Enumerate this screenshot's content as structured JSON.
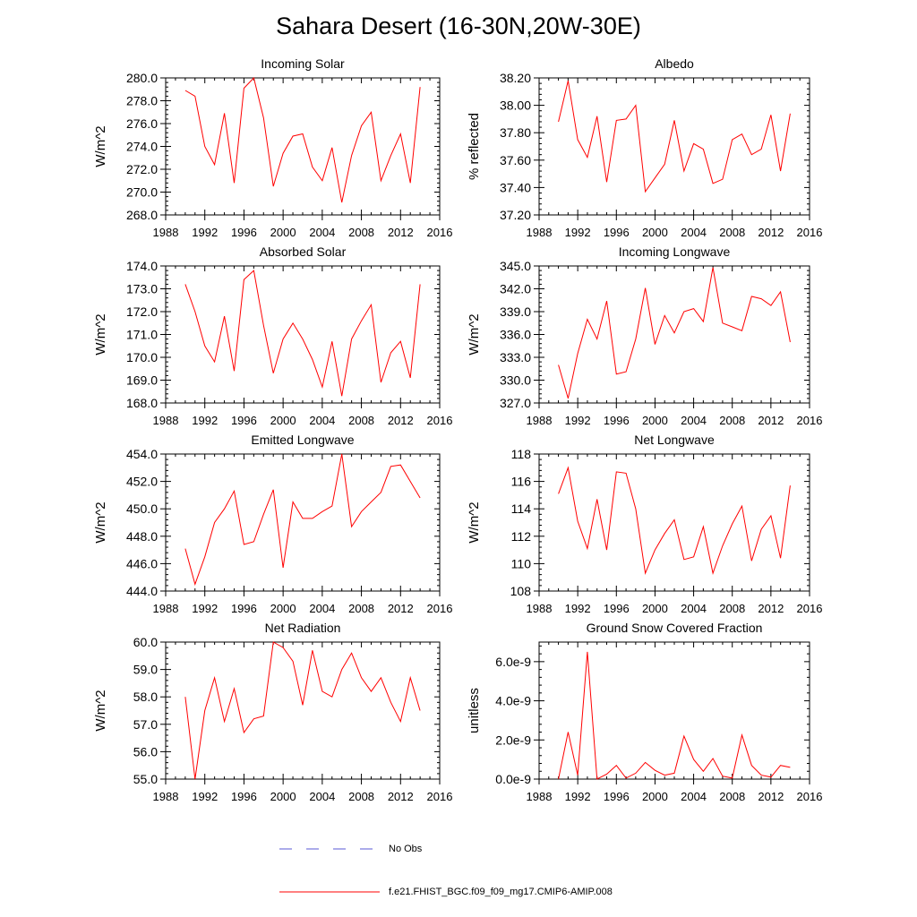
{
  "title": "Sahara Desert (16-30N,20W-30E)",
  "legend": {
    "items": [
      {
        "label": "No Obs",
        "color": "#5a5ad6",
        "style": "dashed"
      },
      {
        "label": "f.e21.FHIST_BGC.f09_f09_mg17.CMIP6-AMIP.008",
        "color": "#ff0000",
        "style": "solid"
      }
    ]
  },
  "chart_data": [
    {
      "type": "line",
      "title": "Incoming Solar",
      "xlabel": "",
      "ylabel": "W/m^2",
      "xlim": [
        1988,
        2016
      ],
      "ylim": [
        268,
        280
      ],
      "xticks": [
        1988,
        1992,
        1996,
        2000,
        2004,
        2008,
        2012,
        2016
      ],
      "yticks": [
        268.0,
        270.0,
        272.0,
        274.0,
        276.0,
        278.0,
        280.0
      ],
      "ytick_labels": [
        "268.0",
        "270.0",
        "272.0",
        "274.0",
        "276.0",
        "278.0",
        "280.0"
      ],
      "x": [
        1990,
        1991,
        1992,
        1993,
        1994,
        1995,
        1996,
        1997,
        1998,
        1999,
        2000,
        2001,
        2002,
        2003,
        2004,
        2005,
        2006,
        2007,
        2008,
        2009,
        2010,
        2011,
        2012,
        2013,
        2014
      ],
      "series": [
        {
          "name": "f.e21.FHIST_BGC.f09_f09_mg17.CMIP6-AMIP.008",
          "color": "#ff0000",
          "values": [
            278.9,
            278.4,
            274.0,
            272.4,
            276.9,
            270.8,
            279.1,
            280.0,
            276.5,
            270.5,
            273.4,
            274.9,
            275.1,
            272.2,
            271.0,
            273.9,
            269.1,
            273.2,
            275.8,
            277.0,
            271.0,
            273.2,
            275.1,
            270.8,
            279.2
          ]
        }
      ]
    },
    {
      "type": "line",
      "title": "Albedo",
      "xlabel": "",
      "ylabel": "% reflected",
      "xlim": [
        1988,
        2016
      ],
      "ylim": [
        37.2,
        38.2
      ],
      "xticks": [
        1988,
        1992,
        1996,
        2000,
        2004,
        2008,
        2012,
        2016
      ],
      "yticks": [
        37.2,
        37.4,
        37.6,
        37.8,
        38.0,
        38.2
      ],
      "ytick_labels": [
        "37.20",
        "37.40",
        "37.60",
        "37.80",
        "38.00",
        "38.20"
      ],
      "x": [
        1990,
        1991,
        1992,
        1993,
        1994,
        1995,
        1996,
        1997,
        1998,
        1999,
        2000,
        2001,
        2002,
        2003,
        2004,
        2005,
        2006,
        2007,
        2008,
        2009,
        2010,
        2011,
        2012,
        2013,
        2014
      ],
      "series": [
        {
          "name": "f.e21.FHIST_BGC.f09_f09_mg17.CMIP6-AMIP.008",
          "color": "#ff0000",
          "values": [
            37.88,
            38.18,
            37.75,
            37.62,
            37.92,
            37.44,
            37.89,
            37.9,
            38.0,
            37.37,
            37.47,
            37.57,
            37.89,
            37.52,
            37.72,
            37.68,
            37.43,
            37.46,
            37.75,
            37.79,
            37.64,
            37.68,
            37.93,
            37.52,
            37.94
          ]
        }
      ]
    },
    {
      "type": "line",
      "title": "Absorbed Solar",
      "xlabel": "",
      "ylabel": "W/m^2",
      "xlim": [
        1988,
        2016
      ],
      "ylim": [
        168,
        174
      ],
      "xticks": [
        1988,
        1992,
        1996,
        2000,
        2004,
        2008,
        2012,
        2016
      ],
      "yticks": [
        168.0,
        169.0,
        170.0,
        171.0,
        172.0,
        173.0,
        174.0
      ],
      "ytick_labels": [
        "168.0",
        "169.0",
        "170.0",
        "171.0",
        "172.0",
        "173.0",
        "174.0"
      ],
      "x": [
        1990,
        1991,
        1992,
        1993,
        1994,
        1995,
        1996,
        1997,
        1998,
        1999,
        2000,
        2001,
        2002,
        2003,
        2004,
        2005,
        2006,
        2007,
        2008,
        2009,
        2010,
        2011,
        2012,
        2013,
        2014
      ],
      "series": [
        {
          "name": "f.e21.FHIST_BGC.f09_f09_mg17.CMIP6-AMIP.008",
          "color": "#ff0000",
          "values": [
            173.2,
            172.0,
            170.5,
            169.8,
            171.8,
            169.4,
            173.4,
            173.8,
            171.4,
            169.3,
            170.8,
            171.5,
            170.8,
            169.9,
            168.7,
            170.7,
            168.3,
            170.8,
            171.6,
            172.3,
            168.9,
            170.2,
            170.7,
            169.1,
            173.2
          ]
        }
      ]
    },
    {
      "type": "line",
      "title": "Incoming Longwave",
      "xlabel": "",
      "ylabel": "W/m^2",
      "xlim": [
        1988,
        2016
      ],
      "ylim": [
        327,
        345
      ],
      "xticks": [
        1988,
        1992,
        1996,
        2000,
        2004,
        2008,
        2012,
        2016
      ],
      "yticks": [
        327.0,
        330.0,
        333.0,
        336.0,
        339.0,
        342.0,
        345.0
      ],
      "ytick_labels": [
        "327.0",
        "330.0",
        "333.0",
        "336.0",
        "339.0",
        "342.0",
        "345.0"
      ],
      "x": [
        1990,
        1991,
        1992,
        1993,
        1994,
        1995,
        1996,
        1997,
        1998,
        1999,
        2000,
        2001,
        2002,
        2003,
        2004,
        2005,
        2006,
        2007,
        2008,
        2009,
        2010,
        2011,
        2012,
        2013,
        2014
      ],
      "series": [
        {
          "name": "f.e21.FHIST_BGC.f09_f09_mg17.CMIP6-AMIP.008",
          "color": "#ff0000",
          "values": [
            332.0,
            327.6,
            333.5,
            338.0,
            335.4,
            340.4,
            330.8,
            331.1,
            335.4,
            342.1,
            334.7,
            338.5,
            336.2,
            339.0,
            339.4,
            337.7,
            344.8,
            337.5,
            337.0,
            336.5,
            341.0,
            340.7,
            339.8,
            341.6,
            335.0
          ]
        }
      ]
    },
    {
      "type": "line",
      "title": "Emitted Longwave",
      "xlabel": "",
      "ylabel": "W/m^2",
      "xlim": [
        1988,
        2016
      ],
      "ylim": [
        444,
        454
      ],
      "xticks": [
        1988,
        1992,
        1996,
        2000,
        2004,
        2008,
        2012,
        2016
      ],
      "yticks": [
        444.0,
        446.0,
        448.0,
        450.0,
        452.0,
        454.0
      ],
      "ytick_labels": [
        "444.0",
        "446.0",
        "448.0",
        "450.0",
        "452.0",
        "454.0"
      ],
      "x": [
        1990,
        1991,
        1992,
        1993,
        1994,
        1995,
        1996,
        1997,
        1998,
        1999,
        2000,
        2001,
        2002,
        2003,
        2004,
        2005,
        2006,
        2007,
        2008,
        2009,
        2010,
        2011,
        2012,
        2013,
        2014
      ],
      "series": [
        {
          "name": "f.e21.FHIST_BGC.f09_f09_mg17.CMIP6-AMIP.008",
          "color": "#ff0000",
          "values": [
            447.1,
            444.5,
            446.5,
            449.0,
            450.0,
            451.3,
            447.4,
            447.6,
            449.6,
            451.4,
            445.7,
            450.5,
            449.3,
            449.3,
            449.8,
            450.2,
            454.0,
            448.7,
            449.8,
            450.5,
            451.2,
            453.1,
            453.2,
            452.0,
            450.8
          ]
        }
      ]
    },
    {
      "type": "line",
      "title": "Net Longwave",
      "xlabel": "",
      "ylabel": "W/m^2",
      "xlim": [
        1988,
        2016
      ],
      "ylim": [
        108,
        118
      ],
      "xticks": [
        1988,
        1992,
        1996,
        2000,
        2004,
        2008,
        2012,
        2016
      ],
      "yticks": [
        108,
        110,
        112,
        114,
        116,
        118
      ],
      "ytick_labels": [
        "108",
        "110",
        "112",
        "114",
        "116",
        "118"
      ],
      "x": [
        1990,
        1991,
        1992,
        1993,
        1994,
        1995,
        1996,
        1997,
        1998,
        1999,
        2000,
        2001,
        2002,
        2003,
        2004,
        2005,
        2006,
        2007,
        2008,
        2009,
        2010,
        2011,
        2012,
        2013,
        2014
      ],
      "series": [
        {
          "name": "f.e21.FHIST_BGC.f09_f09_mg17.CMIP6-AMIP.008",
          "color": "#ff0000",
          "values": [
            115.1,
            117.0,
            113.1,
            111.1,
            114.7,
            111.0,
            116.7,
            116.6,
            114.0,
            109.3,
            111.0,
            112.2,
            113.2,
            110.3,
            110.5,
            112.7,
            109.3,
            111.3,
            112.9,
            114.2,
            110.2,
            112.5,
            113.5,
            110.4,
            115.7
          ]
        }
      ]
    },
    {
      "type": "line",
      "title": "Net Radiation",
      "xlabel": "",
      "ylabel": "W/m^2",
      "xlim": [
        1988,
        2016
      ],
      "ylim": [
        55,
        60
      ],
      "xticks": [
        1988,
        1992,
        1996,
        2000,
        2004,
        2008,
        2012,
        2016
      ],
      "yticks": [
        55.0,
        56.0,
        57.0,
        58.0,
        59.0,
        60.0
      ],
      "ytick_labels": [
        "55.0",
        "56.0",
        "57.0",
        "58.0",
        "59.0",
        "60.0"
      ],
      "x": [
        1990,
        1991,
        1992,
        1993,
        1994,
        1995,
        1996,
        1997,
        1998,
        1999,
        2000,
        2001,
        2002,
        2003,
        2004,
        2005,
        2006,
        2007,
        2008,
        2009,
        2010,
        2011,
        2012,
        2013,
        2014
      ],
      "series": [
        {
          "name": "f.e21.FHIST_BGC.f09_f09_mg17.CMIP6-AMIP.008",
          "color": "#ff0000",
          "values": [
            58.0,
            55.0,
            57.5,
            58.7,
            57.1,
            58.3,
            56.7,
            57.2,
            57.3,
            60.0,
            59.8,
            59.3,
            57.7,
            59.7,
            58.2,
            58.0,
            59.0,
            59.6,
            58.7,
            58.2,
            58.7,
            57.8,
            57.1,
            58.7,
            57.5
          ]
        }
      ]
    },
    {
      "type": "line",
      "title": "Ground Snow Covered Fraction",
      "xlabel": "",
      "ylabel": "unitless",
      "xlim": [
        1988,
        2016
      ],
      "ylim": [
        0,
        7e-09
      ],
      "xticks": [
        1988,
        1992,
        1996,
        2000,
        2004,
        2008,
        2012,
        2016
      ],
      "yticks": [
        0,
        2e-09,
        4e-09,
        6e-09
      ],
      "ytick_labels": [
        "0.0e-9",
        "2.0e-9",
        "4.0e-9",
        "6.0e-9"
      ],
      "x": [
        1990,
        1991,
        1992,
        1993,
        1994,
        1995,
        1996,
        1997,
        1998,
        1999,
        2000,
        2001,
        2002,
        2003,
        2004,
        2005,
        2006,
        2007,
        2008,
        2009,
        2010,
        2011,
        2012,
        2013,
        2014
      ],
      "series": [
        {
          "name": "f.e21.FHIST_BGC.f09_f09_mg17.CMIP6-AMIP.008",
          "color": "#ff0000",
          "values": [
            0.0,
            2.4e-09,
            2e-10,
            6.5e-09,
            0.0,
            2.5e-10,
            7e-10,
            5e-11,
            3e-10,
            8.5e-10,
            4.5e-10,
            2e-10,
            3e-10,
            2.2e-09,
            1e-09,
            4e-10,
            1.05e-09,
            1.5e-10,
            5e-11,
            2.25e-09,
            7e-10,
            2e-10,
            1e-10,
            7e-10,
            6e-10
          ]
        }
      ]
    }
  ]
}
